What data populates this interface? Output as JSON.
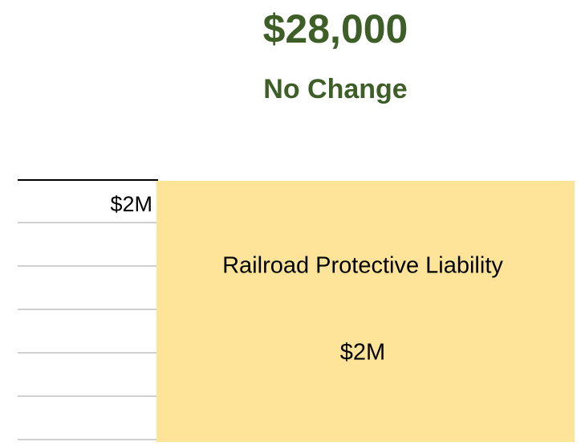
{
  "header": {
    "amount": "$28,000",
    "change": "No Change"
  },
  "axis": {
    "top_label": "$2M"
  },
  "layer": {
    "name": "Railroad Protective Liability",
    "limit": "$2M"
  }
}
